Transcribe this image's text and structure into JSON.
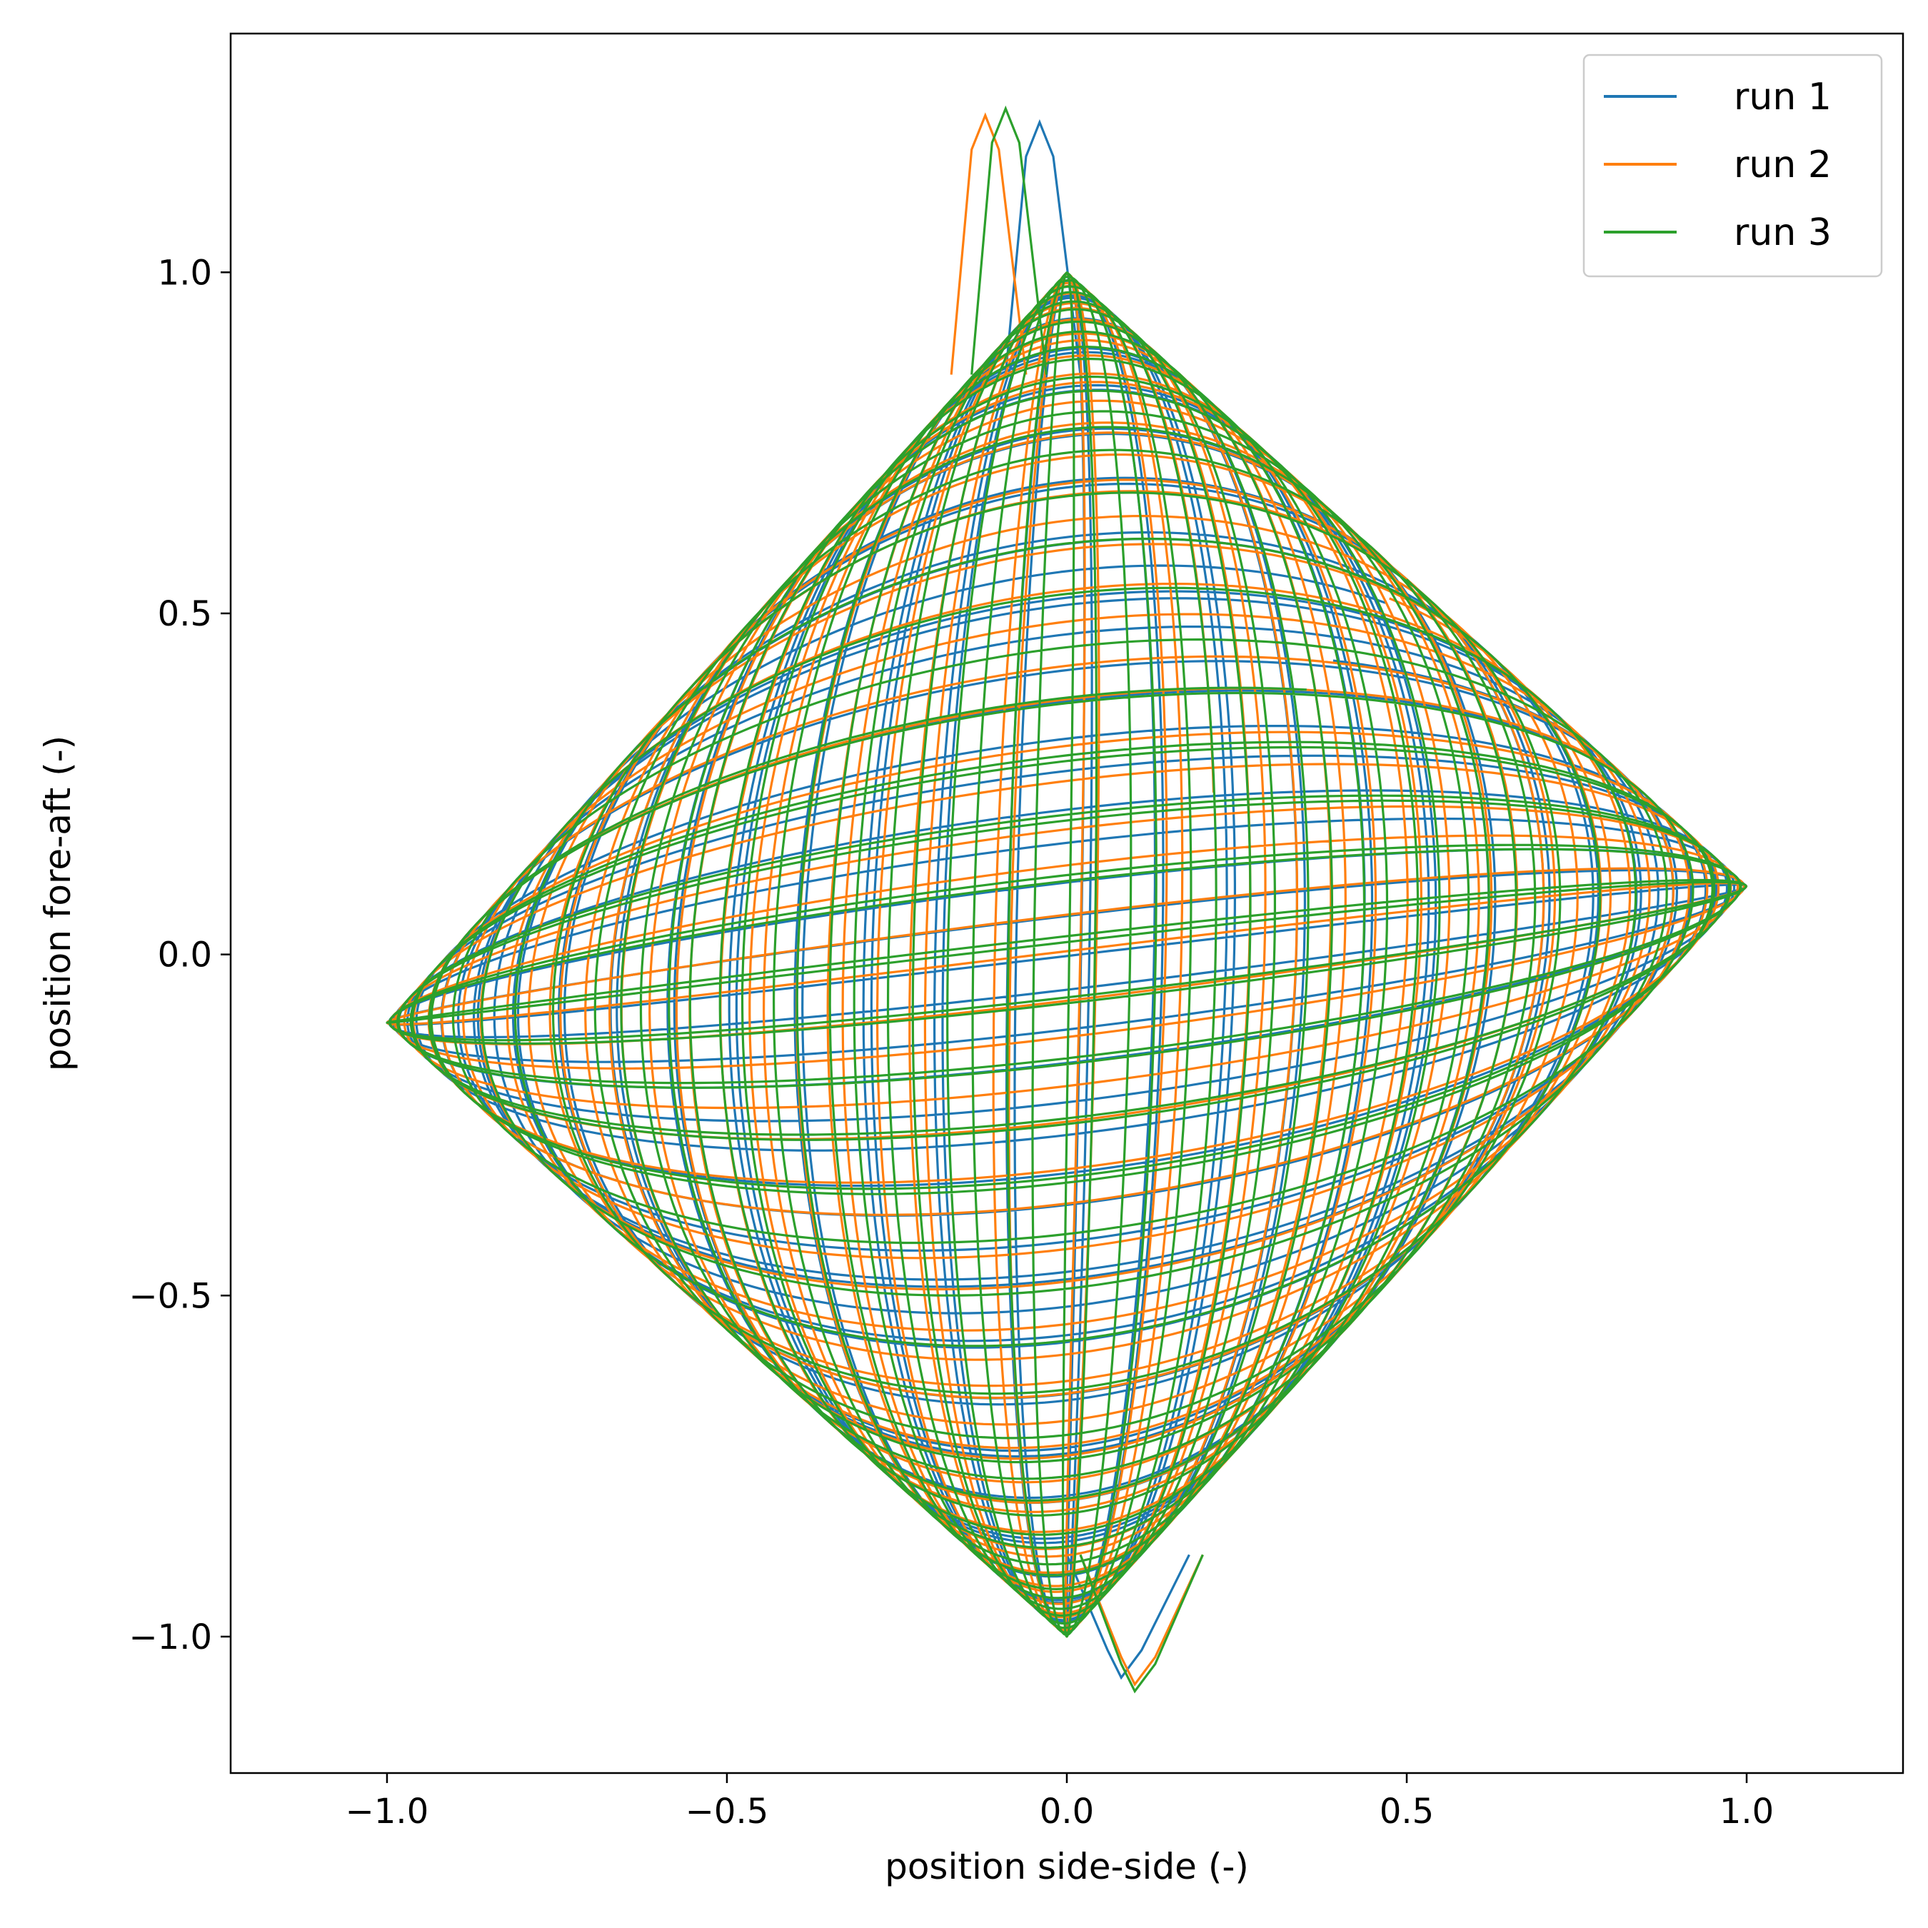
{
  "chart_data": {
    "type": "line",
    "xlabel": "position side-side (-)",
    "ylabel": "position fore-aft (-)",
    "xlim": [
      -1.23,
      1.23
    ],
    "ylim": [
      -1.2,
      1.35
    ],
    "xticks": [
      -1.0,
      -0.5,
      0.0,
      0.5,
      1.0
    ],
    "xtick_labels": [
      "−1.0",
      "−0.5",
      "0.0",
      "0.5",
      "1.0"
    ],
    "yticks": [
      -1.0,
      -0.5,
      0.0,
      0.5,
      1.0
    ],
    "ytick_labels": [
      "−1.0",
      "−0.5",
      "0.0",
      "0.5",
      "1.0"
    ],
    "grid": false,
    "legend_position": "top-right",
    "series": [
      {
        "name": "run 1",
        "color": "#1f77b4",
        "x_amplitude": 1.0,
        "x_frequency": 1.0,
        "y_amplitude": 1.0,
        "y_frequency": 1.035,
        "offset": [
          0.0,
          0.0
        ],
        "loops": 30,
        "peak_points": [
          [
            -0.04,
            1.22
          ],
          [
            0.08,
            -1.06
          ],
          [
            -1.0,
            -0.1
          ],
          [
            1.0,
            0.1
          ]
        ]
      },
      {
        "name": "run 2",
        "color": "#ff7f0e",
        "x_amplitude": 1.0,
        "x_frequency": 1.0,
        "y_amplitude": 1.0,
        "y_frequency": 1.041,
        "offset": [
          0.0,
          0.0
        ],
        "loops": 30,
        "peak_points": [
          [
            -0.12,
            1.23
          ],
          [
            0.1,
            -1.07
          ],
          [
            -1.0,
            -0.1
          ],
          [
            1.0,
            0.1
          ]
        ]
      },
      {
        "name": "run 3",
        "color": "#2ca02c",
        "x_amplitude": 1.0,
        "x_frequency": 1.0,
        "y_amplitude": 1.0,
        "y_frequency": 1.029,
        "offset": [
          0.0,
          0.0
        ],
        "loops": 30,
        "peak_points": [
          [
            -0.09,
            1.24
          ],
          [
            0.1,
            -1.08
          ],
          [
            -1.0,
            -0.1
          ],
          [
            1.0,
            0.1
          ]
        ]
      }
    ]
  }
}
